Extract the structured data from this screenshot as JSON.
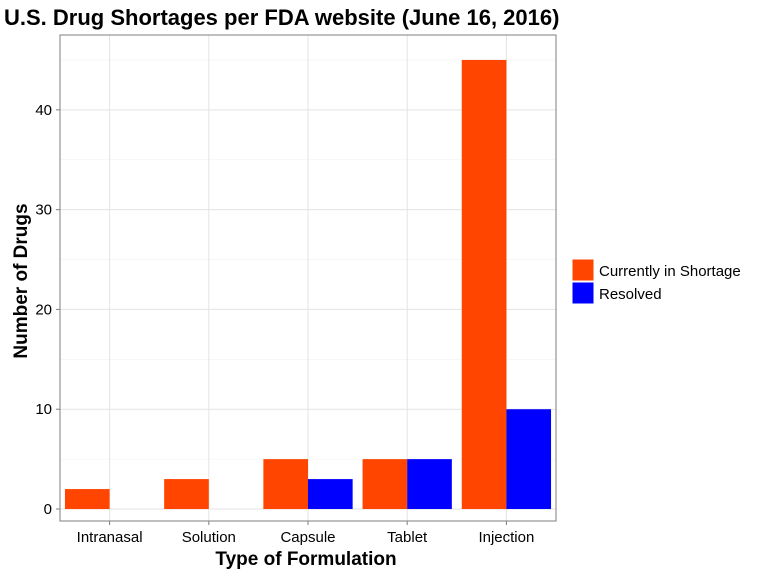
{
  "chart_data": {
    "type": "bar",
    "title": "U.S. Drug Shortages per FDA website (June 16, 2016)",
    "xlabel": "Type of Formulation",
    "ylabel": "Number of Drugs",
    "categories": [
      "Intranasal",
      "Solution",
      "Capsule",
      "Tablet",
      "Injection"
    ],
    "series": [
      {
        "name": "Currently in Shortage",
        "color": "#FF4500",
        "values": [
          2,
          3,
          5,
          5,
          45
        ]
      },
      {
        "name": "Resolved",
        "color": "#0000FF",
        "values": [
          0,
          0,
          3,
          5,
          10
        ]
      }
    ],
    "ylim": [
      -1.2,
      47.5
    ],
    "yticks": [
      0,
      10,
      20,
      30,
      40
    ],
    "grid": true,
    "legend_position": "right"
  }
}
